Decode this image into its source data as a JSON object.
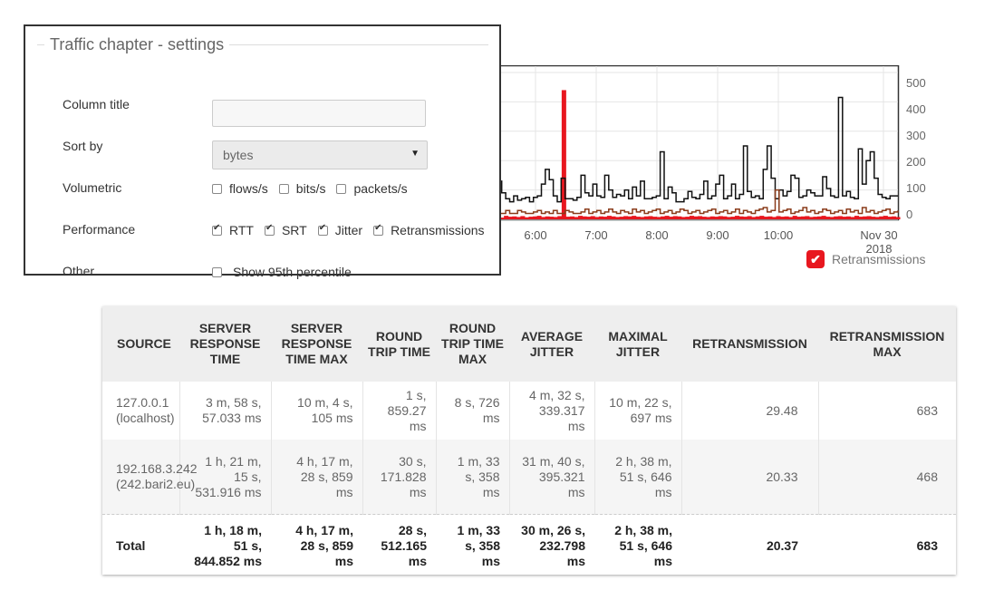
{
  "settings": {
    "title": "Traffic chapter - settings",
    "column_title_label": "Column title",
    "column_title_value": "",
    "sort_by_label": "Sort by",
    "sort_by_value": "bytes",
    "volumetric_label": "Volumetric",
    "volumetric_options": [
      {
        "label": "flows/s",
        "checked": false
      },
      {
        "label": "bits/s",
        "checked": false
      },
      {
        "label": "packets/s",
        "checked": false
      }
    ],
    "performance_label": "Performance",
    "performance_options": [
      {
        "label": "RTT",
        "checked": true
      },
      {
        "label": "SRT",
        "checked": true
      },
      {
        "label": "Jitter",
        "checked": true
      },
      {
        "label": "Retransmissions",
        "checked": true
      }
    ],
    "other_label": "Other",
    "other_option": {
      "label": "Show 95th percentile",
      "checked": false
    }
  },
  "chart": {
    "y_ticks": [
      "500",
      "400",
      "300",
      "200",
      "100",
      "0"
    ],
    "x_ticks": [
      "6:00",
      "7:00",
      "8:00",
      "9:00",
      "10:00",
      "Nov 30"
    ],
    "x_tick_sub": "2018",
    "legend_label": "Retransmissions",
    "legend_color": "#e8171f",
    "legend_checked": true
  },
  "chart_data": {
    "type": "line",
    "ylim": [
      0,
      500
    ],
    "x_tick_labels": [
      "6:00",
      "7:00",
      "8:00",
      "9:00",
      "10:00",
      "Nov 30 2018"
    ],
    "legend": "Retransmissions",
    "series": [
      {
        "name": "Retransmissions",
        "color": "#e8171f",
        "style": "bars",
        "values": [
          8,
          10,
          6,
          12,
          9,
          10,
          8,
          11,
          7,
          9,
          10,
          12,
          8,
          10,
          9,
          8,
          11,
          440,
          9,
          10,
          8,
          12,
          10,
          9,
          11,
          8,
          10,
          9,
          12,
          10,
          8,
          9,
          11,
          10,
          12,
          9,
          8,
          10,
          11,
          9,
          8,
          10,
          12,
          9,
          11,
          10,
          8,
          9,
          12,
          10,
          11,
          9,
          8,
          10,
          9,
          11,
          10,
          8,
          9,
          12,
          10,
          9,
          11,
          8,
          10,
          12,
          9,
          10,
          8,
          11,
          9,
          10,
          8,
          12,
          9,
          10,
          11,
          8,
          9,
          10,
          12,
          9,
          8,
          10,
          11,
          9,
          10,
          8,
          12,
          9,
          10,
          11,
          9,
          8,
          10,
          12,
          9,
          10,
          8
        ]
      },
      {
        "name": "",
        "color": "#111111",
        "style": "line",
        "values": [
          230,
          130,
          90,
          70,
          60,
          80,
          65,
          70,
          75,
          60,
          75,
          80,
          120,
          170,
          135,
          80,
          60,
          140,
          70,
          70,
          65,
          75,
          150,
          90,
          80,
          120,
          80,
          75,
          150,
          100,
          75,
          85,
          80,
          100,
          70,
          110,
          80,
          130,
          70,
          70,
          75,
          80,
          230,
          70,
          110,
          90,
          60,
          60,
          70,
          95,
          75,
          70,
          85,
          130,
          70,
          80,
          120,
          150,
          70,
          80,
          120,
          70,
          85,
          250,
          95,
          75,
          80,
          70,
          170,
          250,
          140,
          70,
          100,
          80,
          95,
          150,
          140,
          75,
          80,
          100,
          90,
          80,
          80,
          145,
          105,
          80,
          75,
          415,
          80,
          95,
          75,
          70,
          240,
          120,
          200,
          230,
          140,
          85,
          75,
          70,
          80,
          80,
          80
        ]
      },
      {
        "name": "",
        "color": "#8a3b1a",
        "style": "line",
        "values": [
          40,
          20,
          20,
          30,
          20,
          20,
          30,
          25,
          20,
          20,
          25,
          30,
          20,
          25,
          20,
          30,
          20,
          20,
          30,
          25,
          20,
          20,
          25,
          35,
          20,
          25,
          30,
          20,
          25,
          35,
          25,
          20,
          30,
          25,
          20,
          35,
          25,
          30,
          20,
          25,
          30,
          35,
          20,
          25,
          30,
          20,
          25,
          35,
          30,
          20,
          25,
          30,
          20,
          25,
          30,
          35,
          20,
          25,
          30,
          20,
          25,
          35,
          20,
          30,
          25,
          20,
          30,
          35,
          40,
          25,
          30,
          100,
          25,
          30,
          35,
          20,
          25,
          30,
          40,
          25,
          30,
          20,
          25,
          35,
          30,
          20,
          25,
          30,
          20,
          35,
          25,
          30,
          20,
          40,
          25,
          30,
          20,
          25,
          30,
          35,
          20,
          25,
          30
        ]
      }
    ]
  },
  "table": {
    "headers": [
      "SOURCE",
      "SERVER RESPONSE TIME",
      "SERVER RESPONSE TIME MAX",
      "ROUND TRIP TIME",
      "ROUND TRIP TIME MAX",
      "AVERAGE JITTER",
      "MAXIMAL JITTER",
      "RETRANSMISSION",
      "RETRANSMISSION MAX"
    ],
    "rows": [
      [
        "127.0.0.1 (localhost)",
        "3 m, 58 s, 57.033 ms",
        "10 m, 4 s, 105 ms",
        "1 s, 859.27 ms",
        "8 s, 726 ms",
        "4 m, 32 s, 339.317 ms",
        "10 m, 22 s, 697 ms",
        "29.48",
        "683"
      ],
      [
        "192.168.3.242 (242.bari2.eu)",
        "1 h, 21 m, 15 s, 531.916 ms",
        "4 h, 17 m, 28 s, 859 ms",
        "30 s, 171.828 ms",
        "1 m, 33 s, 358 ms",
        "31 m, 40 s, 395.321 ms",
        "2 h, 38 m, 51 s, 646 ms",
        "20.33",
        "468"
      ]
    ],
    "total": [
      "Total",
      "1 h, 18 m, 51 s, 844.852 ms",
      "4 h, 17 m, 28 s, 859 ms",
      "28 s, 512.165 ms",
      "1 m, 33 s, 358 ms",
      "30 m, 26 s, 232.798 ms",
      "2 h, 38 m, 51 s, 646 ms",
      "20.37",
      "683"
    ]
  }
}
